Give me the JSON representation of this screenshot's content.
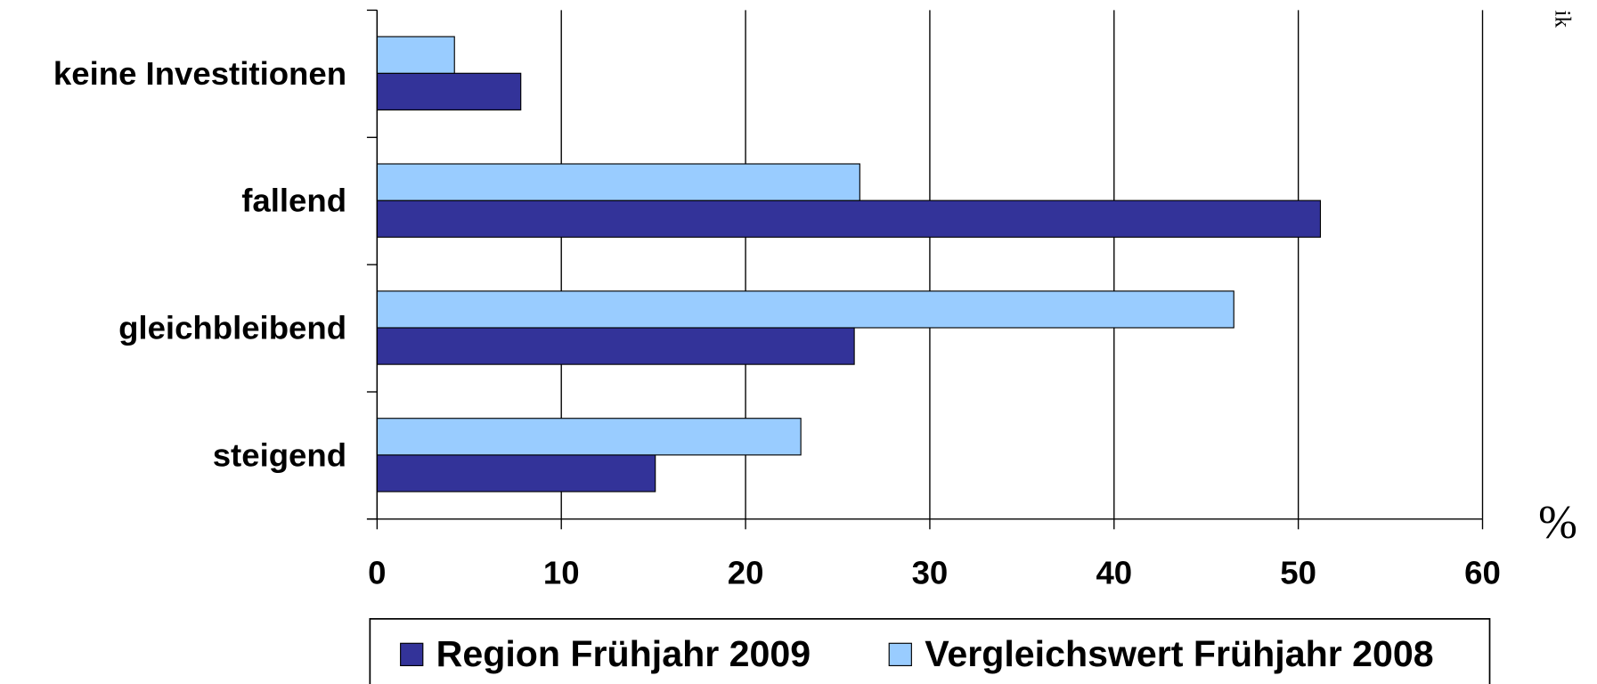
{
  "chart_data": {
    "type": "barh",
    "categories": [
      "keine Investitionen",
      "fallend",
      "gleichbleibend",
      "steigend"
    ],
    "series": [
      {
        "name": "Region Frühjahr 2009",
        "color": "#333399",
        "values": [
          7.8,
          51.2,
          25.9,
          15.1
        ]
      },
      {
        "name": "Vergleichswert Frühjahr 2008",
        "color": "#99ccff",
        "values": [
          4.2,
          26.2,
          46.5,
          23.0
        ]
      }
    ],
    "xlim": [
      0,
      60
    ],
    "xticks": [
      0,
      10,
      20,
      30,
      40,
      50,
      60
    ],
    "grid": true,
    "x_unit": "%",
    "annotation": "ik"
  }
}
